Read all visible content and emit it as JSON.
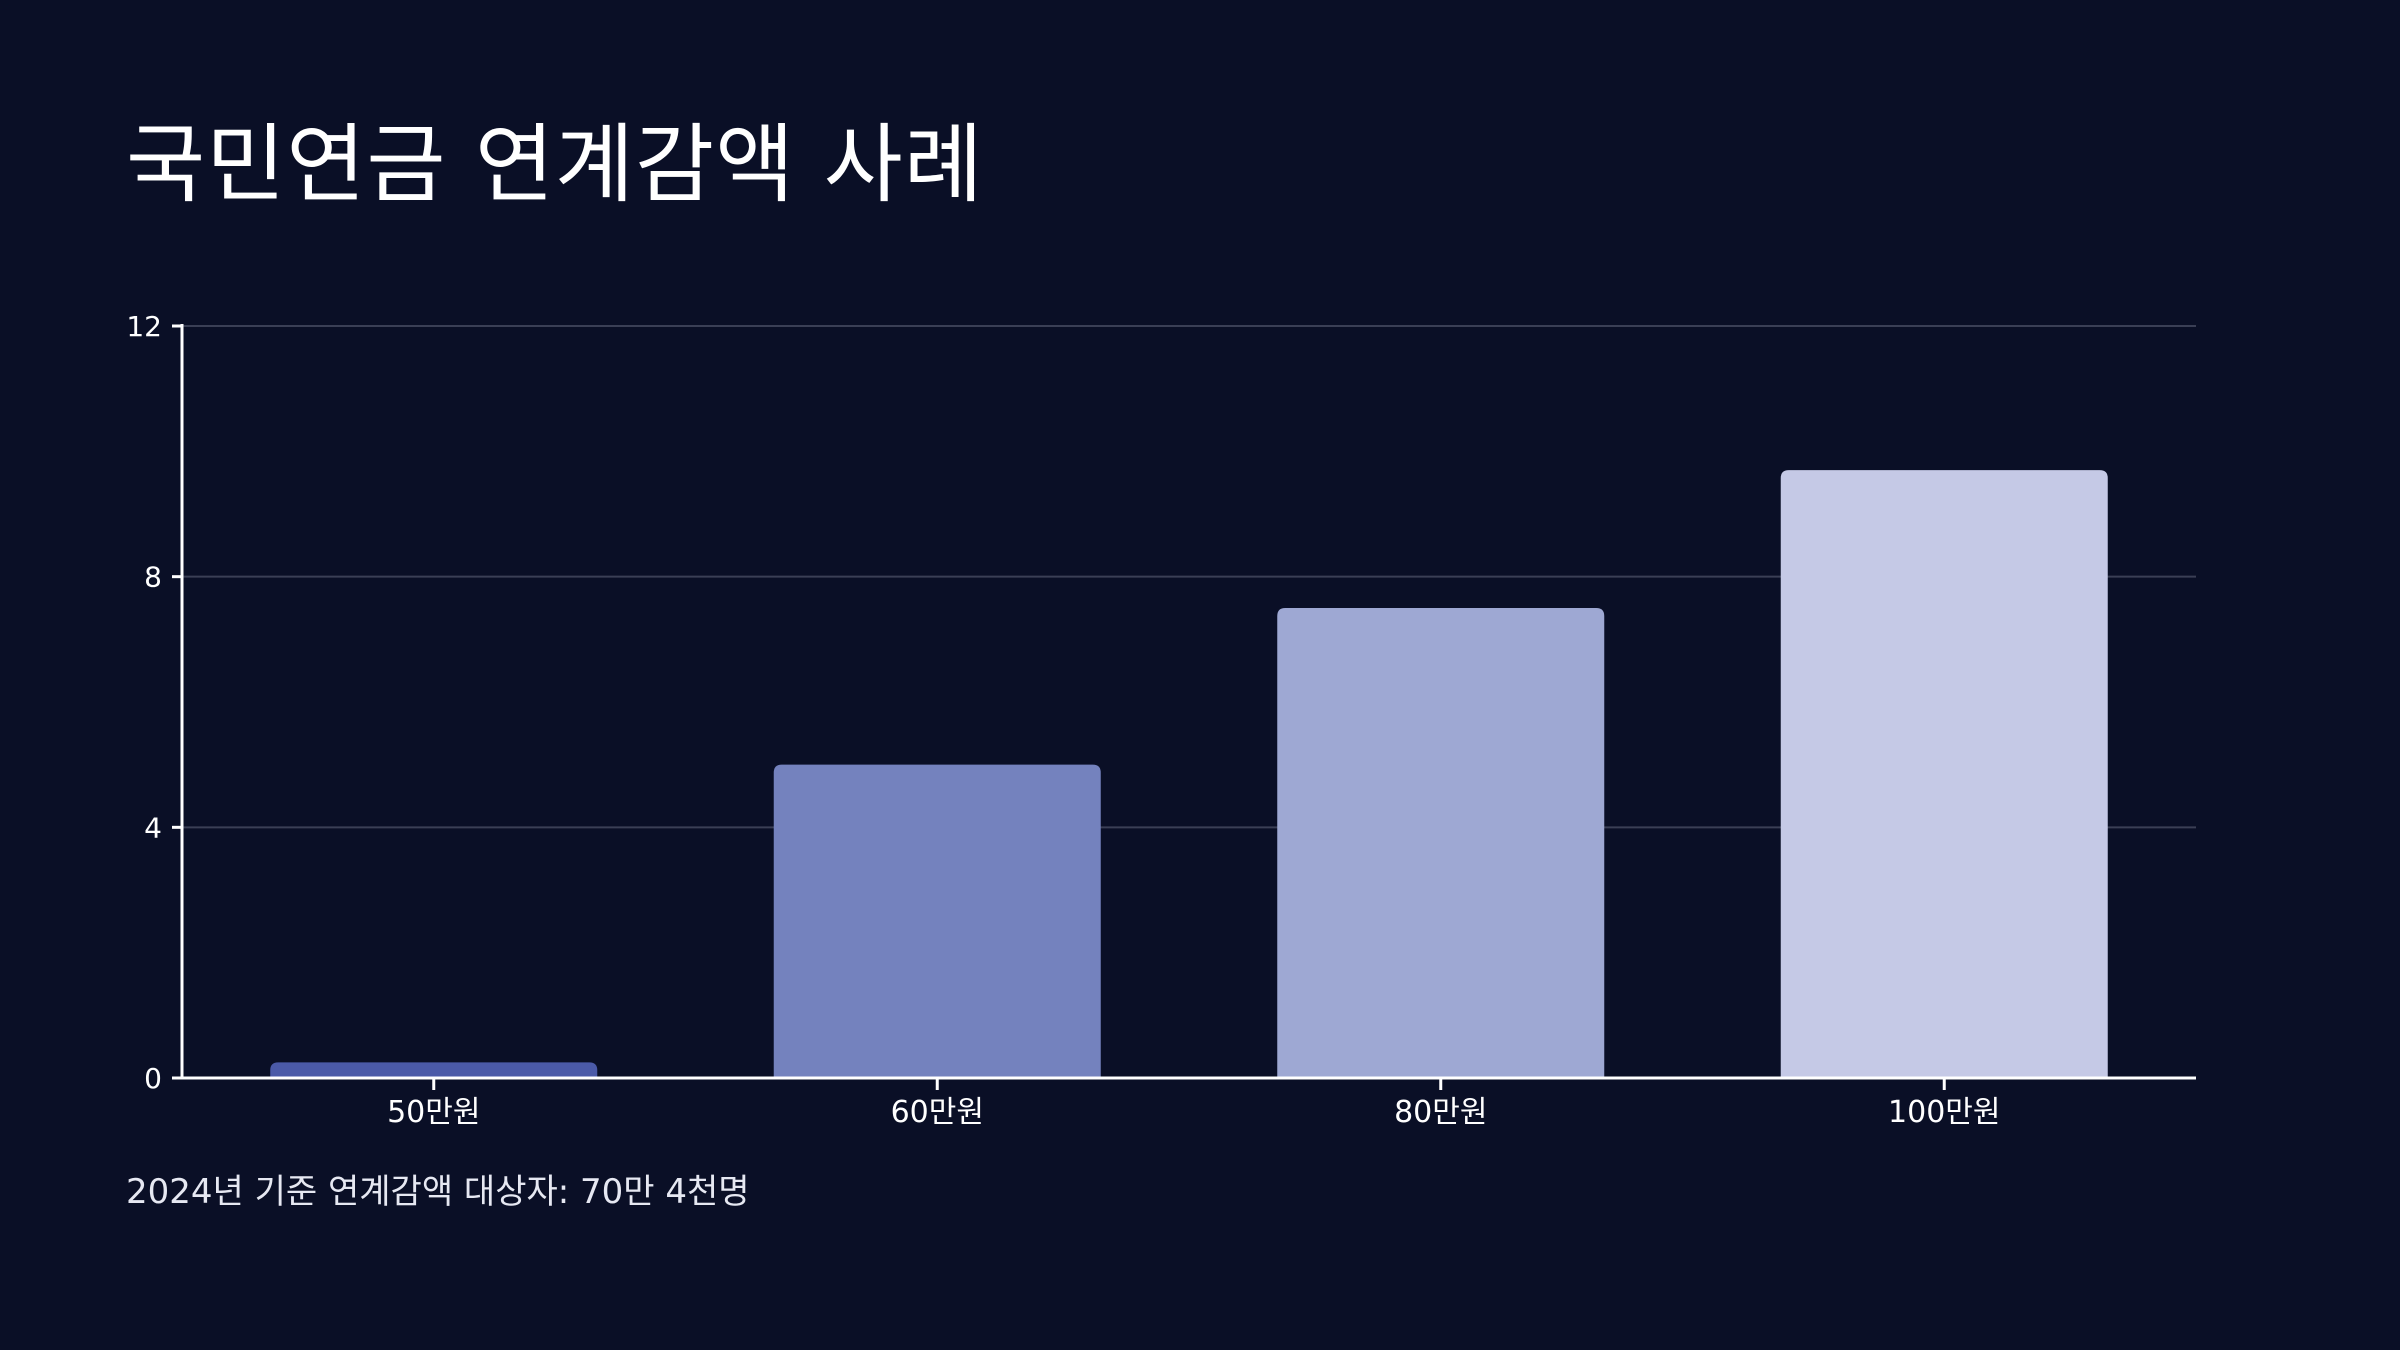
{
  "title": "국민연금 연계감액 사례",
  "footnote": "2024년 기준 연계감액 대상자: 70만 4천명",
  "colors": {
    "background": "#0a0f26",
    "axis": "#ffffff",
    "grid": "#3a3f55",
    "bars": [
      "#4b5aa8",
      "#7482be",
      "#9ea8d3",
      "#c5c9e6"
    ]
  },
  "chart_data": {
    "type": "bar",
    "title": "국민연금 연계감액 사례",
    "categories": [
      "50만원",
      "60만원",
      "80만원",
      "100만원"
    ],
    "values": [
      0.25,
      5.0,
      7.5,
      9.7
    ],
    "ylim": [
      0,
      12
    ],
    "yticks": [
      0,
      4,
      8,
      12
    ],
    "grid": true,
    "legend": "none"
  }
}
